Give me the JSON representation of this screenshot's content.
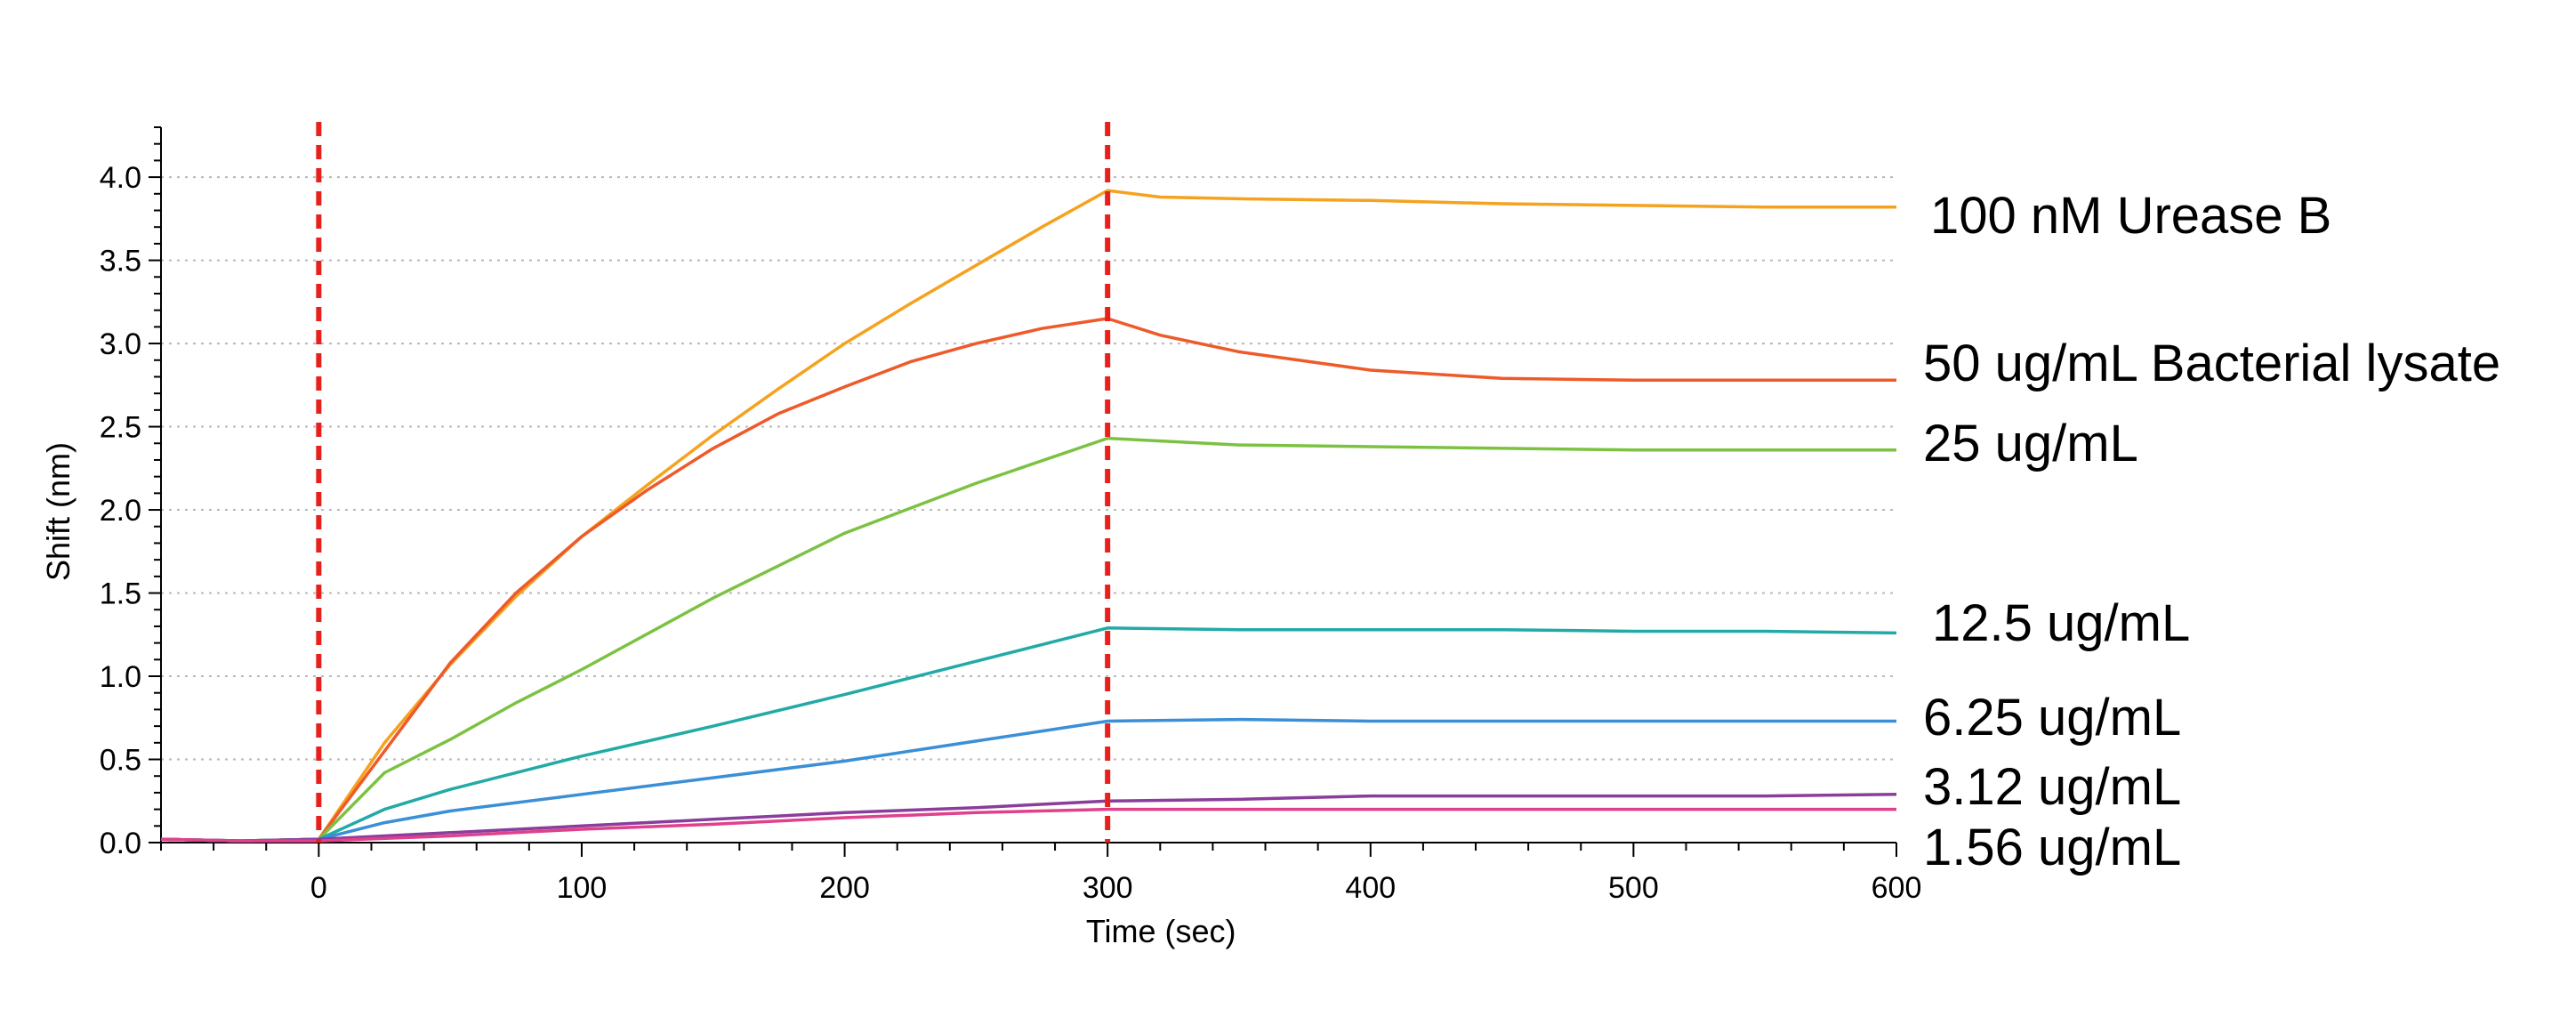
{
  "chart_data": {
    "type": "line",
    "title": "",
    "xlabel": "Time (sec)",
    "ylabel": "Shift (nm)",
    "xlim": [
      -60,
      600
    ],
    "ylim": [
      0,
      4.3
    ],
    "x_ticks": [
      0,
      100,
      200,
      300,
      400,
      500,
      600
    ],
    "x_tick_labels": [
      "0",
      "100",
      "200",
      "300",
      "400",
      "500",
      "600"
    ],
    "y_ticks": [
      0,
      0.5,
      1,
      1.5,
      2,
      2.5,
      3,
      3.5,
      4
    ],
    "y_tick_labels": [
      "0.0",
      "0.5",
      "1.0",
      "1.5",
      "2.0",
      "2.5",
      "3.0",
      "3.5",
      "4.0"
    ],
    "grid": "horizontal dotted",
    "legend": "labels at right end of each line",
    "vertical_markers": [
      {
        "x": 0,
        "color": "#e8201c",
        "style": "dashed"
      },
      {
        "x": 300,
        "color": "#e8201c",
        "style": "dashed"
      }
    ],
    "series": [
      {
        "name": "100 nM Urease B",
        "color": "#f5a21e",
        "x": [
          -60,
          -30,
          0,
          25,
          50,
          75,
          100,
          125,
          150,
          175,
          200,
          225,
          250,
          275,
          300,
          320,
          350,
          400,
          450,
          500,
          550,
          600
        ],
        "y": [
          0.02,
          0.01,
          0.02,
          0.6,
          1.07,
          1.48,
          1.84,
          2.15,
          2.45,
          2.73,
          3.0,
          3.24,
          3.47,
          3.7,
          3.92,
          3.88,
          3.87,
          3.86,
          3.84,
          3.83,
          3.82,
          3.82
        ]
      },
      {
        "name": "50 ug/mL Bacterial lysate",
        "color": "#ee5a2a",
        "x": [
          -60,
          -30,
          0,
          25,
          50,
          75,
          100,
          125,
          150,
          175,
          200,
          225,
          250,
          275,
          300,
          320,
          350,
          400,
          450,
          500,
          550,
          600
        ],
        "y": [
          0.02,
          0.01,
          0.02,
          0.55,
          1.08,
          1.5,
          1.84,
          2.12,
          2.37,
          2.58,
          2.74,
          2.89,
          3.0,
          3.09,
          3.15,
          3.05,
          2.95,
          2.84,
          2.79,
          2.78,
          2.78,
          2.78
        ]
      },
      {
        "name": "25 ug/mL",
        "color": "#7cc242",
        "x": [
          -60,
          -30,
          0,
          25,
          50,
          75,
          100,
          150,
          200,
          250,
          300,
          350,
          400,
          450,
          500,
          550,
          600
        ],
        "y": [
          0.02,
          0.01,
          0.02,
          0.42,
          0.62,
          0.84,
          1.04,
          1.47,
          1.86,
          2.16,
          2.43,
          2.39,
          2.38,
          2.37,
          2.36,
          2.36,
          2.36
        ]
      },
      {
        "name": "12.5 ug/mL",
        "color": "#22aaa6",
        "x": [
          -60,
          -30,
          0,
          25,
          50,
          100,
          150,
          200,
          250,
          300,
          350,
          400,
          450,
          500,
          550,
          600
        ],
        "y": [
          0.02,
          0.01,
          0.02,
          0.2,
          0.32,
          0.52,
          0.7,
          0.89,
          1.09,
          1.29,
          1.28,
          1.28,
          1.28,
          1.27,
          1.27,
          1.26
        ]
      },
      {
        "name": "6.25 ug/mL",
        "color": "#3a8fd6",
        "x": [
          -60,
          -30,
          0,
          25,
          50,
          100,
          150,
          200,
          250,
          300,
          350,
          400,
          450,
          500,
          550,
          600
        ],
        "y": [
          0.02,
          0.01,
          0.02,
          0.12,
          0.19,
          0.29,
          0.39,
          0.49,
          0.61,
          0.73,
          0.74,
          0.73,
          0.73,
          0.73,
          0.73,
          0.73
        ]
      },
      {
        "name": "3.12 ug/mL",
        "color": "#8a3d9a",
        "x": [
          -60,
          -30,
          0,
          50,
          100,
          150,
          200,
          250,
          300,
          350,
          400,
          450,
          500,
          550,
          600
        ],
        "y": [
          0.02,
          0.01,
          0.02,
          0.06,
          0.1,
          0.14,
          0.18,
          0.21,
          0.25,
          0.26,
          0.28,
          0.28,
          0.28,
          0.28,
          0.29
        ]
      },
      {
        "name": "1.56 ug/mL",
        "color": "#e0408c",
        "x": [
          -60,
          -30,
          0,
          50,
          100,
          150,
          200,
          250,
          300,
          350,
          400,
          450,
          500,
          550,
          600
        ],
        "y": [
          0.02,
          0.01,
          0.01,
          0.04,
          0.08,
          0.11,
          0.15,
          0.18,
          0.2,
          0.2,
          0.2,
          0.2,
          0.2,
          0.2,
          0.2
        ]
      }
    ]
  }
}
